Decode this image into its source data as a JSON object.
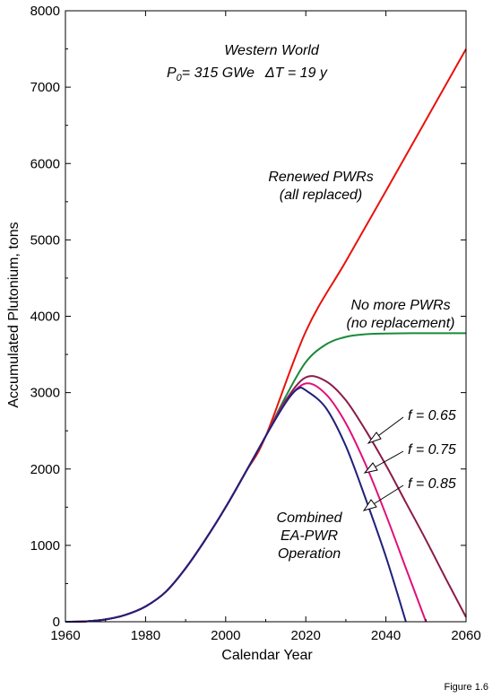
{
  "figure_label": "Figure 1.6",
  "chart_data": {
    "type": "line",
    "xlabel": "Calendar Year",
    "ylabel": "Accumulated Plutonium, tons",
    "xlim": [
      1960,
      2060
    ],
    "ylim": [
      0,
      8000
    ],
    "xticks": [
      1960,
      1980,
      2000,
      2020,
      2040,
      2060
    ],
    "yticks": [
      0,
      1000,
      2000,
      3000,
      4000,
      5000,
      6000,
      7000,
      8000
    ],
    "grid": false,
    "annotations": {
      "title_line1": "Western World",
      "title_line2_a": "P",
      "title_line2_sub": "0",
      "title_line2_b": "= 315 GWe",
      "title_line2_delta": "ΔT = 19 y",
      "renewed_line1": "Renewed PWRs",
      "renewed_line2": "(all replaced)",
      "nomore_line1": "No more PWRs",
      "nomore_line2": "(no replacement)",
      "f065": "f = 0.65",
      "f075": "f = 0.75",
      "f085": "f = 0.85",
      "combined_line1": "Combined",
      "combined_line2": "EA-PWR",
      "combined_line3": "Operation"
    },
    "series": [
      {
        "name": "Renewed PWRs (all replaced)",
        "color": "#e8120c",
        "x": [
          1960,
          1965,
          1970,
          1975,
          1980,
          1985,
          1990,
          1995,
          2000,
          2005,
          2010,
          2020,
          2030,
          2040,
          2050,
          2060
        ],
        "y": [
          0,
          5,
          30,
          90,
          200,
          390,
          700,
          1080,
          1500,
          1960,
          2430,
          3800,
          4720,
          5640,
          6570,
          7500
        ]
      },
      {
        "name": "No more PWRs (no replacement)",
        "color": "#1a8a3a",
        "x": [
          1960,
          1965,
          1970,
          1975,
          1980,
          1985,
          1990,
          1995,
          2000,
          2005,
          2010,
          2015,
          2020,
          2025,
          2030,
          2035,
          2040,
          2050,
          2060
        ],
        "y": [
          0,
          5,
          30,
          90,
          200,
          390,
          700,
          1080,
          1500,
          1960,
          2430,
          2950,
          3400,
          3630,
          3730,
          3765,
          3775,
          3778,
          3778
        ]
      },
      {
        "name": "f = 0.65",
        "color": "#8b1a4a",
        "x": [
          1960,
          1965,
          1970,
          1975,
          1980,
          1985,
          1990,
          1995,
          2000,
          2005,
          2010,
          2015,
          2020,
          2025,
          2030,
          2035,
          2040,
          2045,
          2050,
          2055,
          2060
        ],
        "y": [
          0,
          5,
          30,
          90,
          200,
          390,
          700,
          1080,
          1500,
          1960,
          2430,
          2900,
          3200,
          3150,
          2900,
          2500,
          2050,
          1560,
          1070,
          560,
          60
        ]
      },
      {
        "name": "f = 0.75",
        "color": "#e0107a",
        "x": [
          1960,
          1965,
          1970,
          1975,
          1980,
          1985,
          1990,
          1995,
          2000,
          2005,
          2010,
          2015,
          2020,
          2025,
          2030,
          2035,
          2040,
          2045,
          2050
        ],
        "y": [
          0,
          5,
          30,
          90,
          200,
          390,
          700,
          1080,
          1500,
          1960,
          2430,
          2880,
          3120,
          2980,
          2600,
          2050,
          1400,
          700,
          0
        ]
      },
      {
        "name": "f = 0.85",
        "color": "#20207a",
        "x": [
          1960,
          1965,
          1970,
          1975,
          1980,
          1985,
          1990,
          1995,
          2000,
          2005,
          2010,
          2015,
          2018,
          2020,
          2025,
          2030,
          2035,
          2040,
          2045
        ],
        "y": [
          0,
          5,
          30,
          90,
          200,
          390,
          700,
          1080,
          1500,
          1960,
          2430,
          2870,
          3050,
          3030,
          2800,
          2300,
          1600,
          850,
          0
        ]
      }
    ]
  }
}
